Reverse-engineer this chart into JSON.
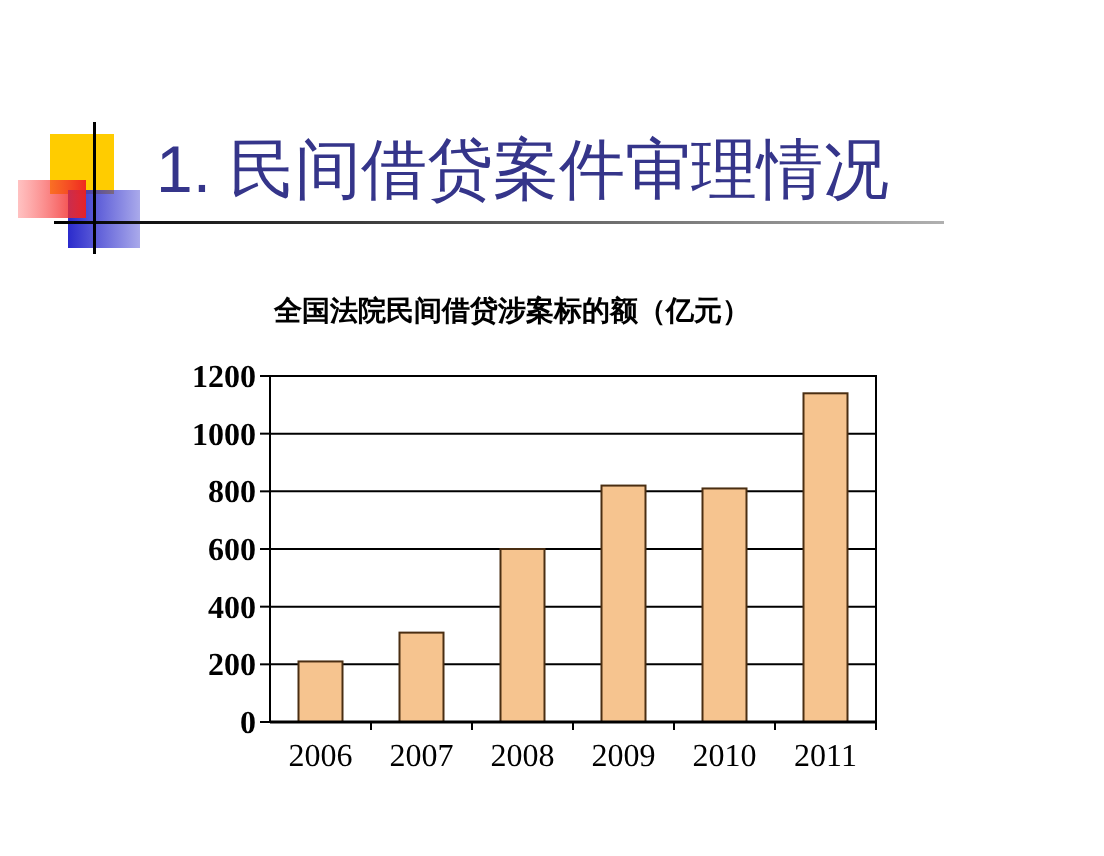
{
  "chart_data": {
    "type": "bar",
    "title": "1. 民间借贷案件审理情况",
    "subtitle": "全国法院民间借贷涉案标的额（亿元）",
    "categories": [
      "2006",
      "2007",
      "2008",
      "2009",
      "2010",
      "2011"
    ],
    "values": [
      210,
      310,
      600,
      820,
      810,
      1140
    ],
    "color": "#f6c48f",
    "ylim": [
      0,
      1200
    ],
    "yticks": [
      0,
      200,
      400,
      600,
      800,
      1000,
      1200
    ],
    "grid": "y"
  }
}
